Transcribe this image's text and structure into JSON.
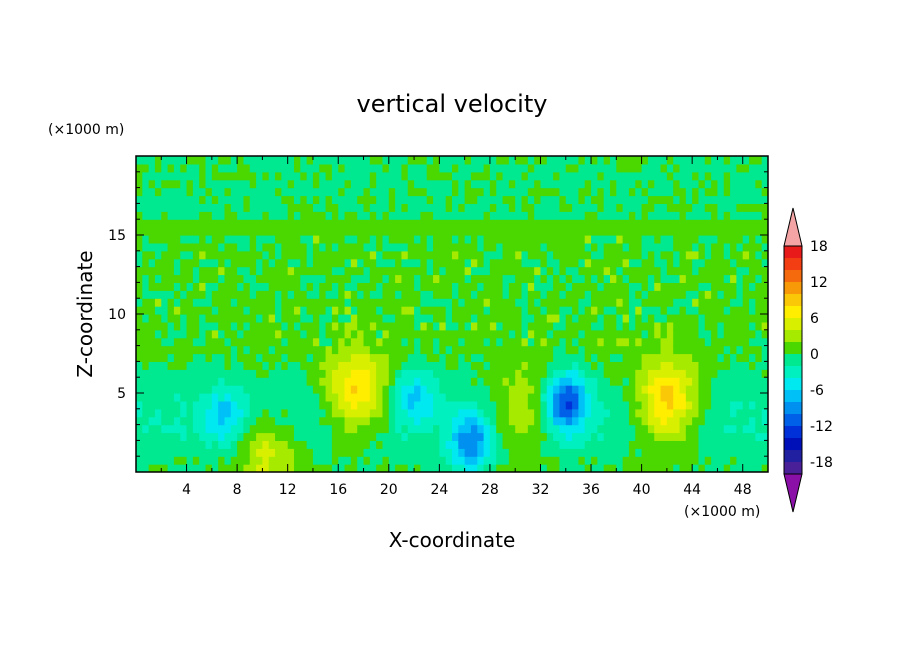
{
  "chart_data": {
    "type": "heatmap",
    "title": "vertical velocity",
    "xlabel": "X-coordinate",
    "ylabel": "Z-coordinate",
    "x_unit": "(×1000 m)",
    "y_unit": "(×1000 m)",
    "xlim": [
      0,
      50
    ],
    "ylim": [
      0,
      20
    ],
    "x_ticks": [
      "4",
      "8",
      "12",
      "16",
      "20",
      "24",
      "28",
      "32",
      "36",
      "40",
      "44",
      "48"
    ],
    "y_ticks": [
      "5",
      "10",
      "15"
    ],
    "colorbar": {
      "tick_labels": [
        "18",
        "12",
        "6",
        "0",
        "-6",
        "-12",
        "-18"
      ],
      "levels": [
        {
          "max": 20,
          "color": "#f4a4a4"
        },
        {
          "max": 18,
          "color": "#e81a1a"
        },
        {
          "max": 16,
          "color": "#f23e12"
        },
        {
          "max": 14,
          "color": "#f56a0c"
        },
        {
          "max": 12,
          "color": "#f89a08"
        },
        {
          "max": 10,
          "color": "#fbc808"
        },
        {
          "max": 8,
          "color": "#ffee00"
        },
        {
          "max": 6,
          "color": "#d8f000"
        },
        {
          "max": 4,
          "color": "#a6ea00"
        },
        {
          "max": 2,
          "color": "#4ad800"
        },
        {
          "max": 0,
          "color": "#00e890"
        },
        {
          "max": -2,
          "color": "#00f0c0"
        },
        {
          "max": -4,
          "color": "#00e8f0"
        },
        {
          "max": -6,
          "color": "#00c0f8"
        },
        {
          "max": -8,
          "color": "#0090f0"
        },
        {
          "max": -10,
          "color": "#0060e8"
        },
        {
          "max": -12,
          "color": "#0030d8"
        },
        {
          "max": -14,
          "color": "#0010b8"
        },
        {
          "max": -16,
          "color": "#2020a0"
        },
        {
          "max": -18,
          "color": "#4a2098"
        },
        {
          "max": -20,
          "color": "#8a10a8"
        }
      ]
    },
    "features": [
      {
        "kind": "updraft",
        "x": 17.5,
        "z": 5.0,
        "peak": 9
      },
      {
        "kind": "updraft",
        "x": 42.0,
        "z": 4.5,
        "peak": 10
      },
      {
        "kind": "updraft",
        "x": 30.5,
        "z": 4.0,
        "peak": 5
      },
      {
        "kind": "updraft",
        "x": 10.5,
        "z": 1.2,
        "peak": 5
      },
      {
        "kind": "downdraft",
        "x": 34.0,
        "z": 4.5,
        "peak": -11
      },
      {
        "kind": "downdraft",
        "x": 26.5,
        "z": 1.8,
        "peak": -9
      },
      {
        "kind": "downdraft",
        "x": 22.0,
        "z": 5.0,
        "peak": -5
      },
      {
        "kind": "downdraft",
        "x": 7.0,
        "z": 3.5,
        "peak": -5
      }
    ]
  }
}
